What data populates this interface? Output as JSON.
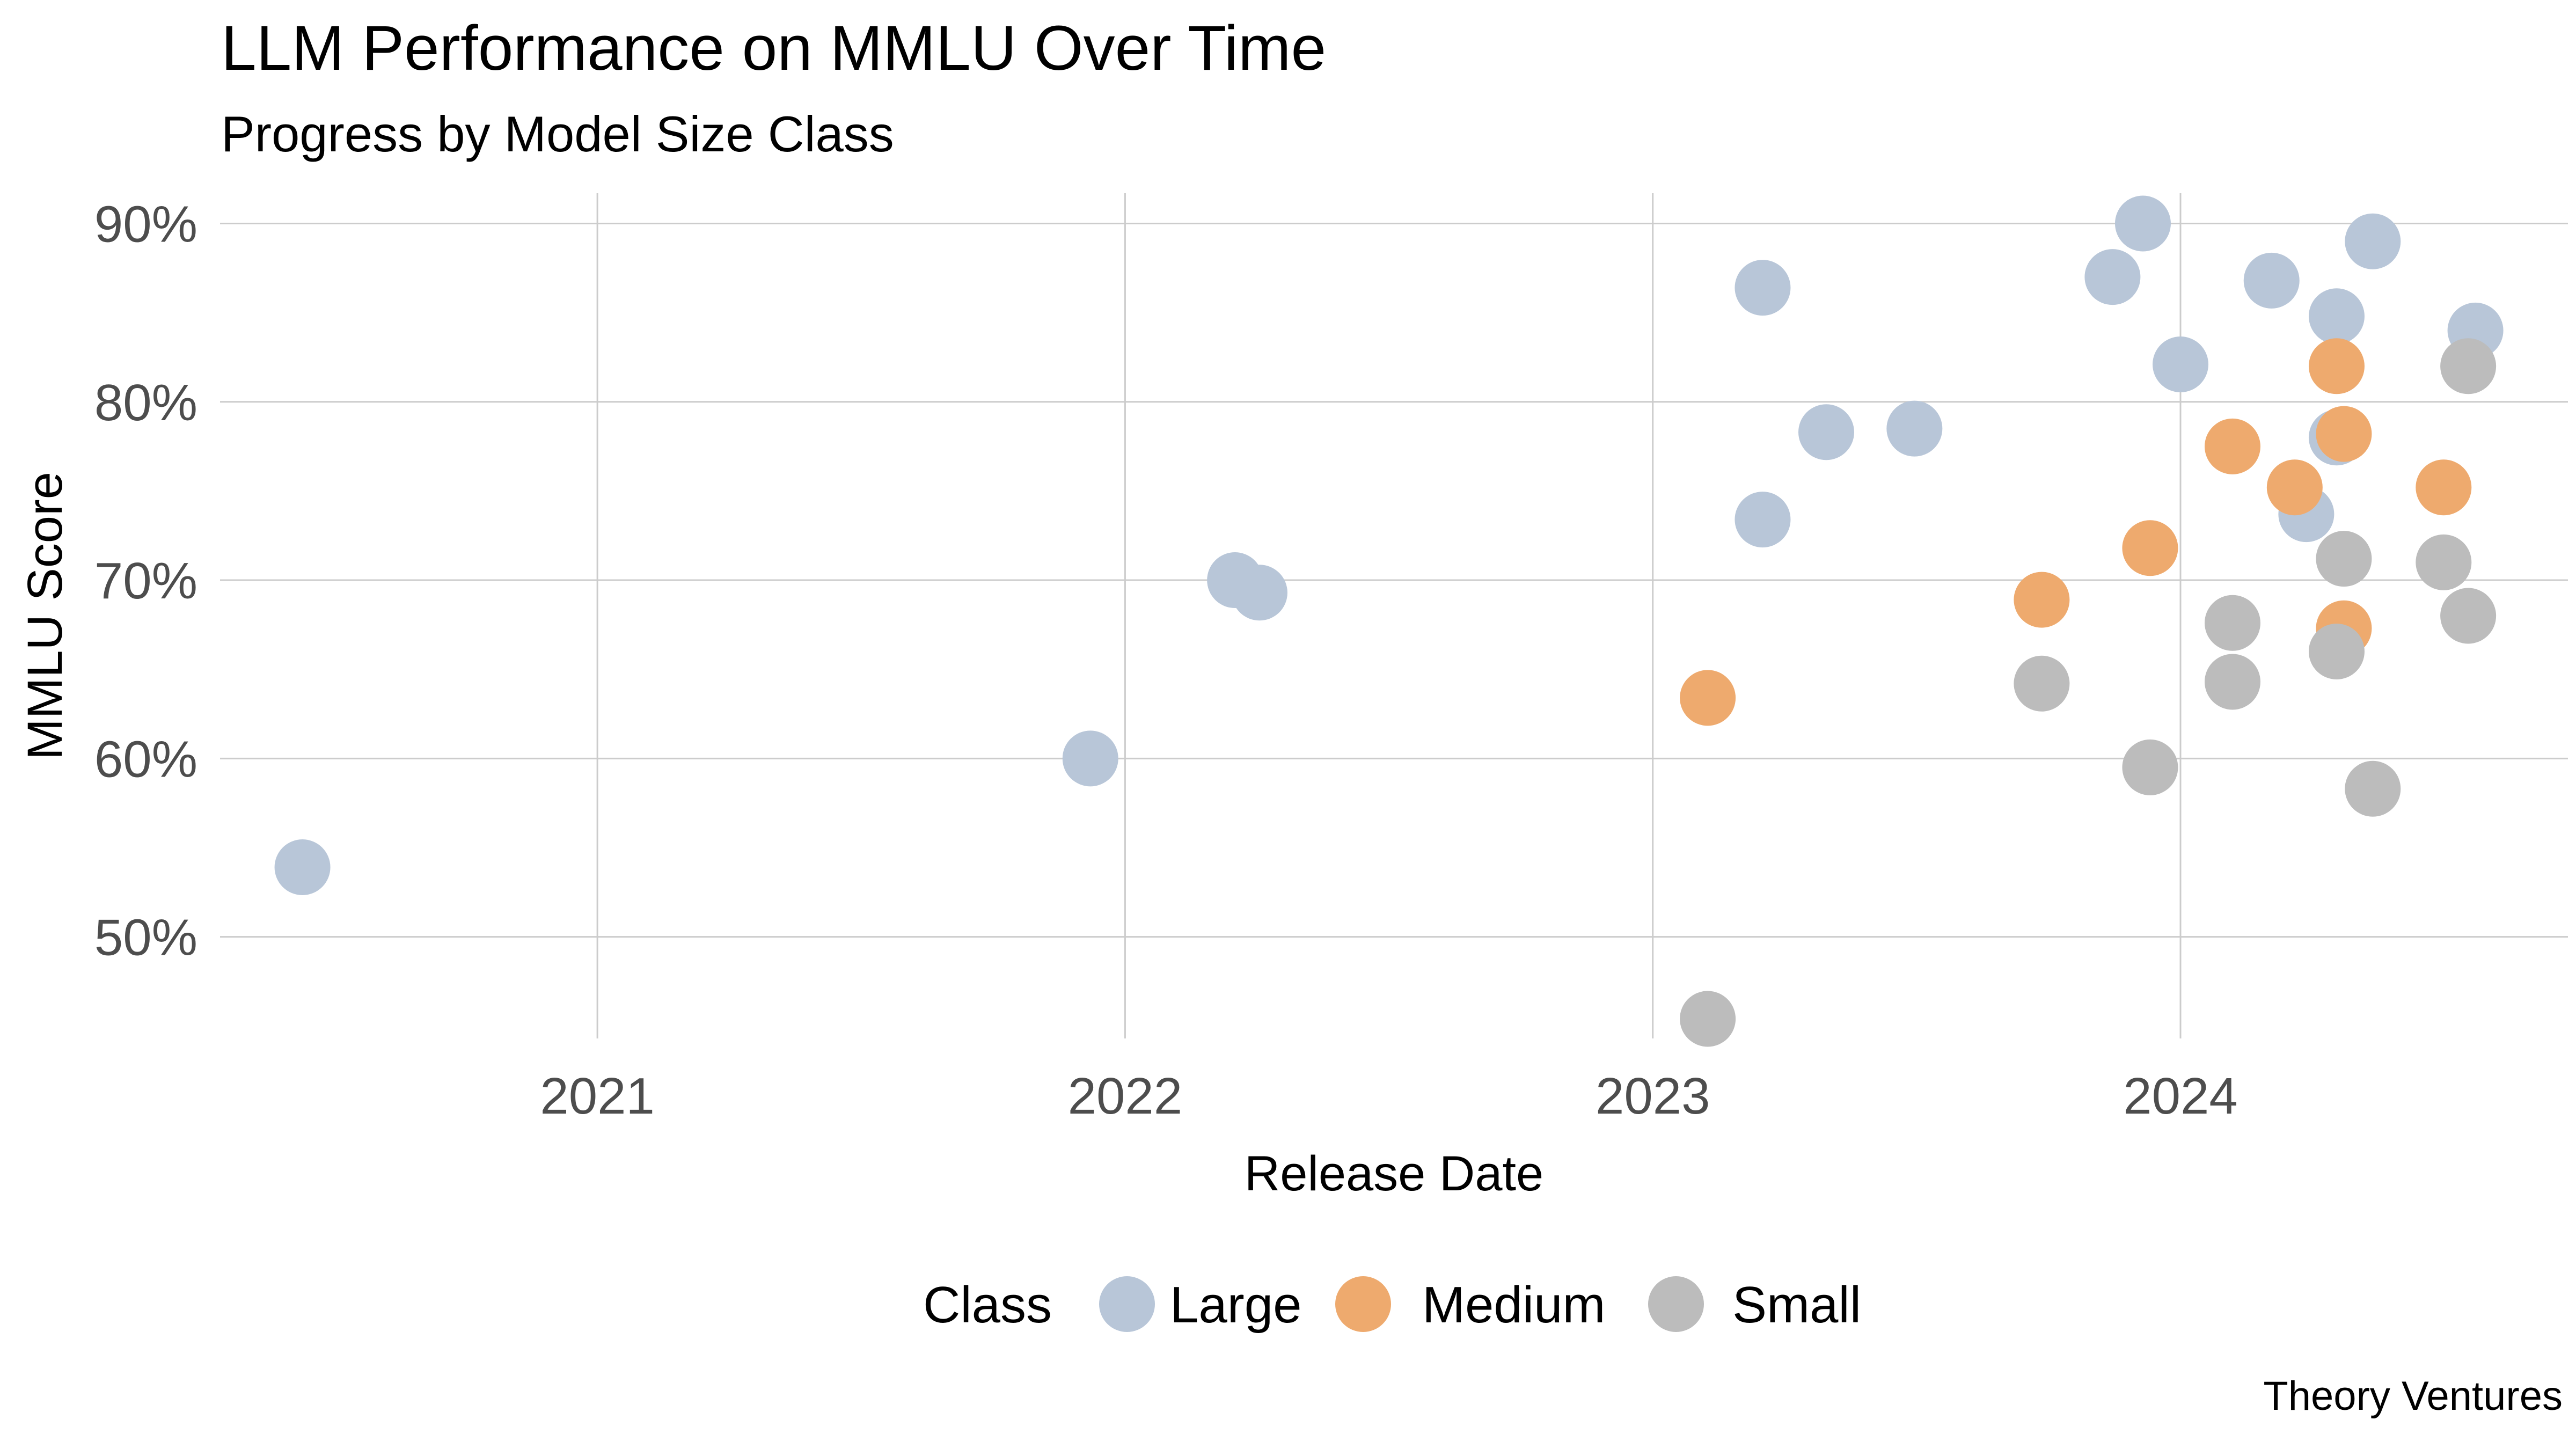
{
  "chart_data": {
    "type": "scatter",
    "title": "LLM Performance on MMLU Over Time",
    "subtitle": "Progress by Model Size Class",
    "xlabel": "Release Date",
    "ylabel": "MMLU Score",
    "x_ticks": [
      "2021",
      "2022",
      "2023",
      "2024"
    ],
    "y_ticks": [
      "50%",
      "60%",
      "70%",
      "80%",
      "90%"
    ],
    "xlim": [
      "2020-04-15",
      "2024-09-25"
    ],
    "ylim": [
      0.443,
      0.917
    ],
    "grid": true,
    "legend": {
      "title": "Class",
      "position": "bottom"
    },
    "caption": "Theory Ventures",
    "series": [
      {
        "name": "Large",
        "color": "#b8c6d8",
        "points": [
          {
            "x": "2020-06-11",
            "y": 0.539
          },
          {
            "x": "2021-12-08",
            "y": 0.6
          },
          {
            "x": "2022-03-18",
            "y": 0.7
          },
          {
            "x": "2022-04-04",
            "y": 0.693
          },
          {
            "x": "2023-03-18",
            "y": 0.864
          },
          {
            "x": "2023-03-18",
            "y": 0.734
          },
          {
            "x": "2023-05-01",
            "y": 0.783
          },
          {
            "x": "2023-07-01",
            "y": 0.785
          },
          {
            "x": "2023-11-15",
            "y": 0.87
          },
          {
            "x": "2023-12-06",
            "y": 0.9
          },
          {
            "x": "2024-01-01",
            "y": 0.821
          },
          {
            "x": "2024-03-04",
            "y": 0.868
          },
          {
            "x": "2024-03-28",
            "y": 0.737
          },
          {
            "x": "2024-04-18",
            "y": 0.848
          },
          {
            "x": "2024-04-18",
            "y": 0.78
          },
          {
            "x": "2024-05-13",
            "y": 0.89
          },
          {
            "x": "2024-07-23",
            "y": 0.84
          }
        ]
      },
      {
        "name": "Medium",
        "color": "#eeaa6e",
        "points": [
          {
            "x": "2023-02-08",
            "y": 0.634
          },
          {
            "x": "2023-09-27",
            "y": 0.689
          },
          {
            "x": "2023-12-11",
            "y": 0.718
          },
          {
            "x": "2024-02-06",
            "y": 0.775
          },
          {
            "x": "2024-03-20",
            "y": 0.752
          },
          {
            "x": "2024-04-18",
            "y": 0.82
          },
          {
            "x": "2024-04-23",
            "y": 0.782
          },
          {
            "x": "2024-04-23",
            "y": 0.673
          },
          {
            "x": "2024-07-01",
            "y": 0.752
          }
        ]
      },
      {
        "name": "Small",
        "color": "#bcbcbc",
        "points": [
          {
            "x": "2023-02-08",
            "y": 0.454
          },
          {
            "x": "2023-09-27",
            "y": 0.642
          },
          {
            "x": "2023-12-11",
            "y": 0.595
          },
          {
            "x": "2024-02-06",
            "y": 0.676
          },
          {
            "x": "2024-02-06",
            "y": 0.643
          },
          {
            "x": "2024-04-18",
            "y": 0.66
          },
          {
            "x": "2024-04-23",
            "y": 0.712
          },
          {
            "x": "2024-05-13",
            "y": 0.583
          },
          {
            "x": "2024-07-01",
            "y": 0.71
          },
          {
            "x": "2024-07-18",
            "y": 0.68
          },
          {
            "x": "2024-07-18",
            "y": 0.82
          }
        ]
      }
    ]
  }
}
